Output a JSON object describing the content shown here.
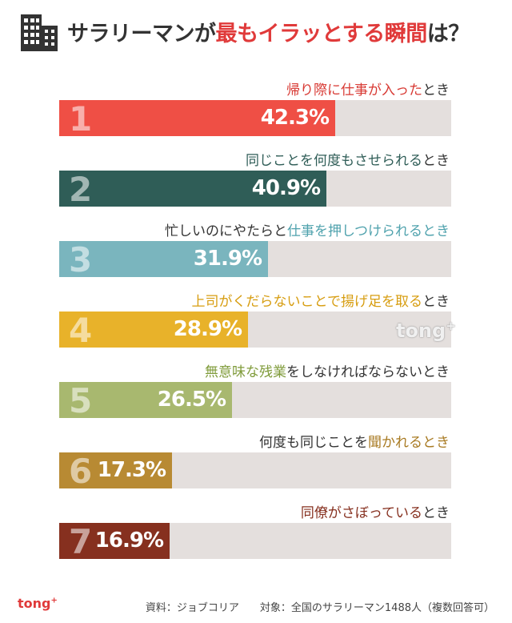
{
  "header": {
    "title_prefix": "サラリーマンが",
    "title_highlight": "最もイラッとする瞬間",
    "title_suffix": "は？",
    "icon": "building-icon"
  },
  "chart_data": {
    "type": "bar",
    "title": "サラリーマンが最もイラッとする瞬間は？",
    "xlim": [
      0,
      60
    ],
    "categories": [
      {
        "rank": "1",
        "label_pre": "",
        "label_hl": "帰り際に仕事が入った",
        "label_post": "とき",
        "value": 42.3,
        "display": "42.3%",
        "color": "#ef4f45",
        "hl_color": "#d83a34"
      },
      {
        "rank": "2",
        "label_pre": "",
        "label_hl": "同じことを何度もさせられる",
        "label_post": "とき",
        "value": 40.9,
        "display": "40.9%",
        "color": "#2f5d57",
        "hl_color": "#2f5d57"
      },
      {
        "rank": "3",
        "label_pre": "忙しいのにやたらと",
        "label_hl": "仕事を押しつけられるとき",
        "label_post": "",
        "value": 31.9,
        "display": "31.9%",
        "color": "#7ab5be",
        "hl_color": "#4fa2ad"
      },
      {
        "rank": "4",
        "label_pre": "",
        "label_hl": "上司がくだらないことで揚げ足を取る",
        "label_post": "とき",
        "value": 28.9,
        "display": "28.9%",
        "color": "#e8b22a",
        "hl_color": "#d79d10"
      },
      {
        "rank": "5",
        "label_pre": "",
        "label_hl": "無意味な残業",
        "label_post": "をしなければならないとき",
        "value": 26.5,
        "display": "26.5%",
        "color": "#a8b86f",
        "hl_color": "#7f9b3a"
      },
      {
        "rank": "6",
        "label_pre": "何度も同じことを",
        "label_hl": "聞かれるとき",
        "label_post": "",
        "value": 17.3,
        "display": "17.3%",
        "color": "#b88a33",
        "hl_color": "#a87a22"
      },
      {
        "rank": "7",
        "label_pre": "",
        "label_hl": "同僚がさぼっている",
        "label_post": "とき",
        "value": 16.9,
        "display": "16.9%",
        "color": "#86301f",
        "hl_color": "#86301f"
      }
    ]
  },
  "watermark": {
    "text": "tong",
    "sup": "+"
  },
  "footer": {
    "logo": "tong",
    "logo_sup": "+",
    "source": "資料：ジョブコリア",
    "target": "対象：全国のサラリーマン1488人（複数回答可）"
  }
}
